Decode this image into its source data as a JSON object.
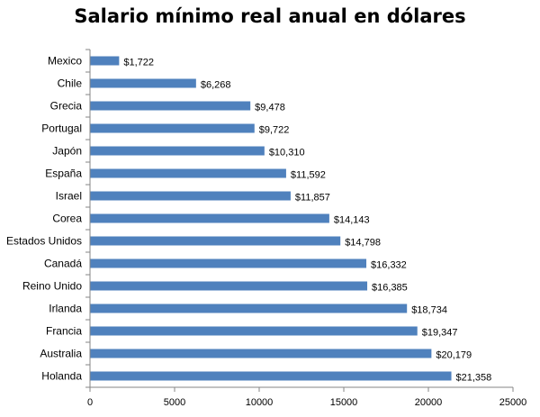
{
  "chart_data": {
    "type": "bar",
    "orientation": "horizontal",
    "title": "Salario mínimo real anual en dólares",
    "categories": [
      "Mexico",
      "Chile",
      "Grecia",
      "Portugal",
      "Japón",
      "España",
      "Israel",
      "Corea",
      "Estados Unidos",
      "Canadá",
      "Reino Unido",
      "Irlanda",
      "Francia",
      "Australia",
      "Holanda"
    ],
    "values": [
      1722,
      6268,
      9478,
      9722,
      10310,
      11592,
      11857,
      14143,
      14798,
      16332,
      16385,
      18734,
      19347,
      20179,
      21358
    ],
    "data_labels": [
      "$1,722",
      "$6,268",
      "$9,478",
      "$9,722",
      "$10,310",
      "$11,592",
      "$11,857",
      "$14,143",
      "$14,798",
      "$16,332",
      "$16,385",
      "$18,734",
      "$19,347",
      "$20,179",
      "$21,358"
    ],
    "xlim": [
      0,
      25000
    ],
    "xticks": [
      0,
      5000,
      10000,
      15000,
      20000,
      25000
    ],
    "xtick_labels": [
      "0",
      "5000",
      "10000",
      "15000",
      "20000",
      "25000"
    ],
    "xlabel": "",
    "ylabel": "",
    "grid": false,
    "legend": "none",
    "bar_color": "#4F81BD"
  }
}
